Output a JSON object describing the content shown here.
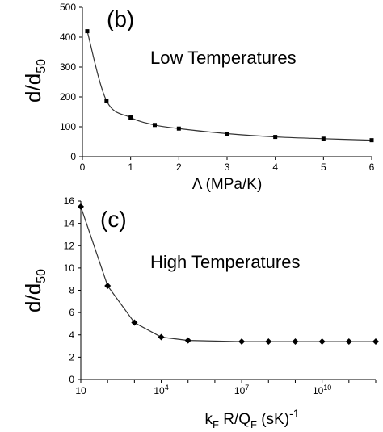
{
  "chart_data": [
    {
      "type": "line",
      "panel_label": "(b)",
      "annotation": "Low Temperatures",
      "ylabel_main": "d/d",
      "ylabel_sub": "50",
      "xlabel": "Λ (MPa/K)",
      "xlim": [
        0,
        6
      ],
      "ylim": [
        0,
        500
      ],
      "xticks": [
        0,
        1,
        2,
        3,
        4,
        5,
        6
      ],
      "yticks": [
        0,
        100,
        200,
        300,
        400,
        500
      ],
      "marker": "square",
      "grid": false,
      "series": [
        {
          "points": [
            [
              0.1,
              420
            ],
            [
              0.5,
              187
            ],
            [
              1,
              131
            ],
            [
              1.5,
              106
            ],
            [
              2,
              94
            ],
            [
              3,
              77
            ],
            [
              4,
              66
            ],
            [
              5,
              60
            ],
            [
              6,
              55
            ]
          ]
        }
      ]
    },
    {
      "type": "line",
      "panel_label": "(c)",
      "annotation": "High Temperatures",
      "ylabel_main": "d/d",
      "ylabel_sub": "50",
      "xlabel_parts": [
        "k",
        "F",
        " R/Q",
        "F",
        " (sK)",
        "-1"
      ],
      "x_scale": "log",
      "xlim_exp": [
        1,
        12
      ],
      "ylim": [
        0,
        16
      ],
      "xticks_exp": [
        1,
        4,
        7,
        10
      ],
      "xtick_labels": [
        "10",
        "10",
        "10",
        "10"
      ],
      "xtick_sups": [
        "",
        "4",
        "7",
        "10"
      ],
      "yticks": [
        0,
        2,
        4,
        6,
        8,
        10,
        12,
        14,
        16
      ],
      "marker": "diamond",
      "grid": false,
      "series": [
        {
          "points": [
            [
              1,
              15.5
            ],
            [
              2,
              8.4
            ],
            [
              3,
              5.1
            ],
            [
              4,
              3.8
            ],
            [
              5,
              3.5
            ],
            [
              7,
              3.4
            ],
            [
              8,
              3.4
            ],
            [
              9,
              3.4
            ],
            [
              10,
              3.4
            ],
            [
              11,
              3.4
            ],
            [
              12,
              3.4
            ]
          ]
        }
      ]
    }
  ]
}
